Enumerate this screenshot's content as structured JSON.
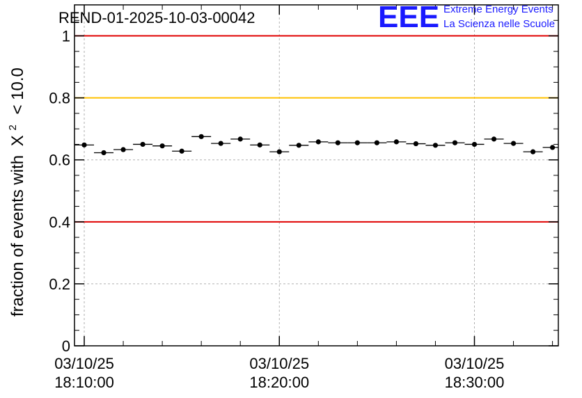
{
  "chart_data": {
    "type": "scatter",
    "title": "REND-01-2025-10-03-00042",
    "ylabel_prefix": "fraction of events with",
    "ylabel_symbol": "X",
    "ylabel_power": "2",
    "ylabel_suffix": "< 10.0",
    "ylim": [
      0,
      1.1
    ],
    "y_ticks": [
      {
        "value": 0,
        "label": "0"
      },
      {
        "value": 0.2,
        "label": "0.2"
      },
      {
        "value": 0.4,
        "label": "0.4"
      },
      {
        "value": 0.6,
        "label": "0.6"
      },
      {
        "value": 0.8,
        "label": "0.8"
      },
      {
        "value": 1,
        "label": "1"
      }
    ],
    "xlim_minutes": [
      -0.5,
      24.3
    ],
    "x_ticks": [
      {
        "minute": 0,
        "date": "03/10/25",
        "time": "18:10:00"
      },
      {
        "minute": 10,
        "date": "03/10/25",
        "time": "18:20:00"
      },
      {
        "minute": 20,
        "date": "03/10/25",
        "time": "18:30:00"
      }
    ],
    "bin_width_minutes": 1,
    "points": [
      {
        "minute": 0,
        "value": 0.648
      },
      {
        "minute": 1,
        "value": 0.623
      },
      {
        "minute": 2,
        "value": 0.633
      },
      {
        "minute": 3,
        "value": 0.65
      },
      {
        "minute": 4,
        "value": 0.645
      },
      {
        "minute": 5,
        "value": 0.628
      },
      {
        "minute": 6,
        "value": 0.675
      },
      {
        "minute": 7,
        "value": 0.653
      },
      {
        "minute": 8,
        "value": 0.667
      },
      {
        "minute": 9,
        "value": 0.648
      },
      {
        "minute": 10,
        "value": 0.626
      },
      {
        "minute": 11,
        "value": 0.647
      },
      {
        "minute": 12,
        "value": 0.658
      },
      {
        "minute": 13,
        "value": 0.655
      },
      {
        "minute": 14,
        "value": 0.655
      },
      {
        "minute": 15,
        "value": 0.655
      },
      {
        "minute": 16,
        "value": 0.658
      },
      {
        "minute": 17,
        "value": 0.652
      },
      {
        "minute": 18,
        "value": 0.647
      },
      {
        "minute": 19,
        "value": 0.655
      },
      {
        "minute": 20,
        "value": 0.65
      },
      {
        "minute": 21,
        "value": 0.667
      },
      {
        "minute": 22,
        "value": 0.653
      },
      {
        "minute": 23,
        "value": 0.626
      },
      {
        "minute": 24,
        "value": 0.64
      }
    ],
    "reference_lines": [
      {
        "value": 1.0,
        "color": "#e00000"
      },
      {
        "value": 0.8,
        "color": "#ffc000"
      },
      {
        "value": 0.4,
        "color": "#e00000"
      }
    ],
    "grid": true
  },
  "logo": {
    "mark": "EEE",
    "line1": "Extreme Energy Events",
    "line2": "La Scienza nelle Scuole",
    "color": "#1a1aff"
  }
}
